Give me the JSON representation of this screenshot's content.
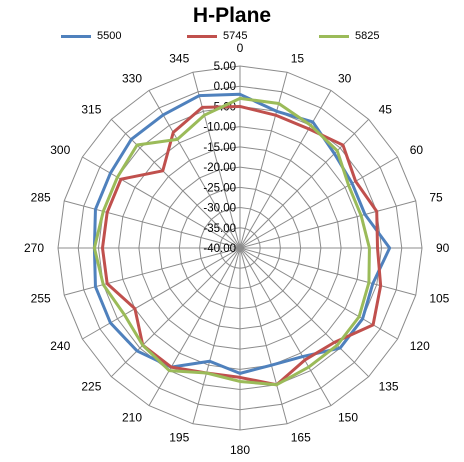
{
  "chart_data": {
    "type": "radar",
    "title": "H-Plane",
    "angles": [
      0,
      15,
      30,
      45,
      60,
      75,
      90,
      105,
      120,
      135,
      150,
      165,
      180,
      195,
      210,
      225,
      240,
      255,
      270,
      285,
      300,
      315,
      330,
      345
    ],
    "radial_ticks": [
      "5.00",
      "0.00",
      "-5.00",
      "-10.00",
      "-15.00",
      "-20.00",
      "-25.00",
      "-30.00",
      "-35.00",
      "-40.00"
    ],
    "rlim": [
      -40,
      5
    ],
    "grid": true,
    "legend_position": "top",
    "series": [
      {
        "name": "5500",
        "color": "#4f81bd",
        "values": [
          -2,
          -5,
          -4,
          -7,
          -8,
          -8,
          -3,
          -6,
          -5,
          -5,
          -9,
          -10,
          -9,
          -11,
          -6,
          -4,
          -3,
          -3,
          -4,
          -3,
          -3,
          -2,
          -2,
          -1
        ]
      },
      {
        "name": "5745",
        "color": "#c0504d",
        "values": [
          -5,
          -6,
          -6,
          -4,
          -7,
          -5,
          -6,
          -4,
          -2,
          -7,
          -8,
          -5,
          -8,
          -8,
          -6,
          -6,
          -10,
          -6,
          -6,
          -6,
          -6,
          -13,
          -7,
          -4
        ]
      },
      {
        "name": "5825",
        "color": "#9bbb59",
        "values": [
          -3,
          -3,
          -5,
          -6,
          -9,
          -9,
          -8,
          -7,
          -6,
          -6,
          -6,
          -5,
          -7,
          -8,
          -5,
          -6,
          -7,
          -5,
          -4,
          -5,
          -5,
          -4,
          -9,
          -6
        ]
      }
    ]
  }
}
